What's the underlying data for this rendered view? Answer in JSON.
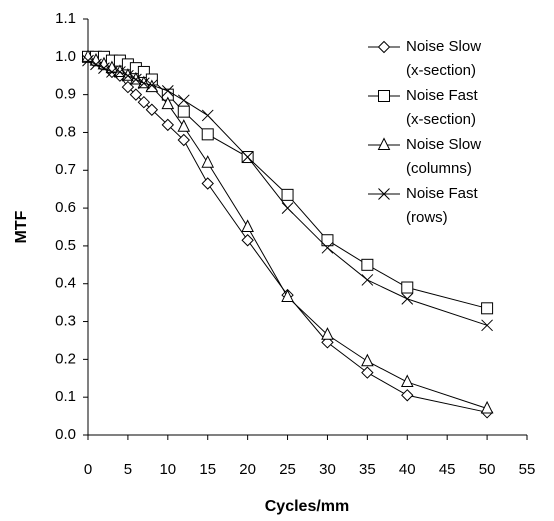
{
  "chart_data": {
    "type": "line",
    "x_label": "Cycles/mm",
    "y_label": "MTF",
    "x": [
      0,
      1,
      2,
      3,
      4,
      5,
      6,
      7,
      8,
      10,
      12,
      15,
      20,
      25,
      30,
      35,
      40,
      50
    ],
    "series": [
      {
        "name": "Noise Slow (x-section)",
        "color": "#000000",
        "marker": "diamond",
        "values": [
          1.0,
          0.99,
          0.98,
          0.96,
          0.95,
          0.92,
          0.9,
          0.88,
          0.86,
          0.82,
          0.78,
          0.665,
          0.515,
          0.37,
          0.245,
          0.165,
          0.105,
          0.06
        ]
      },
      {
        "name": "Noise Fast (x-section)",
        "color": "#000000",
        "marker": "square",
        "values": [
          1.0,
          1.0,
          1.0,
          0.99,
          0.99,
          0.98,
          0.97,
          0.96,
          0.94,
          0.9,
          0.855,
          0.795,
          0.735,
          0.635,
          0.515,
          0.45,
          0.39,
          0.335
        ]
      },
      {
        "name": "Noise Slow (columns)",
        "color": "#000000",
        "marker": "triangle",
        "values": [
          1.0,
          0.99,
          0.98,
          0.97,
          0.96,
          0.95,
          0.94,
          0.93,
          0.92,
          0.875,
          0.815,
          0.72,
          0.55,
          0.365,
          0.265,
          0.195,
          0.14,
          0.07
        ]
      },
      {
        "name": "Noise Fast (rows)",
        "color": "#000000",
        "marker": "cross",
        "values": [
          0.99,
          0.98,
          0.97,
          0.96,
          0.96,
          0.95,
          0.94,
          0.93,
          0.925,
          0.91,
          0.885,
          0.845,
          0.735,
          0.6,
          0.495,
          0.41,
          0.36,
          0.29
        ]
      }
    ],
    "xlim": [
      0,
      55
    ],
    "xticks": [
      0,
      5,
      10,
      15,
      20,
      25,
      30,
      35,
      40,
      45,
      50,
      55
    ],
    "ylim": [
      0,
      1.1
    ],
    "yticks": [
      {
        "value": 0,
        "label": "0.0"
      },
      0.1,
      0.2,
      0.3,
      0.4,
      0.5,
      0.6,
      0.7,
      0.8,
      0.9,
      {
        "value": 1,
        "label": "1.0"
      },
      1.1
    ],
    "grid": false,
    "legend": "upper right"
  }
}
